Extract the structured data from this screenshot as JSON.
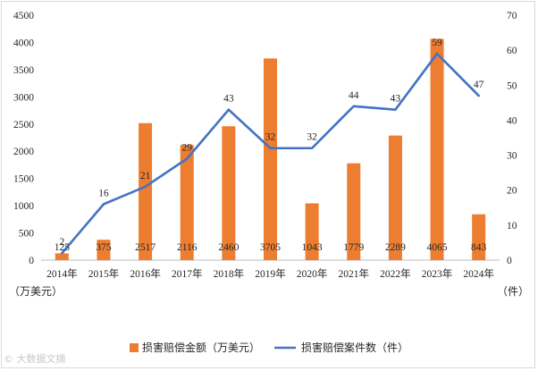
{
  "chart_data": {
    "type": "bar+line",
    "categories": [
      "2014年",
      "2015年",
      "2016年",
      "2017年",
      "2018年",
      "2019年",
      "2020年",
      "2021年",
      "2022年",
      "2023年",
      "2024年"
    ],
    "series": [
      {
        "name": "损害赔偿金额（万美元）",
        "type": "bar",
        "axis": "left",
        "color": "#ed7d31",
        "values": [
          125,
          375,
          2517,
          2116,
          2460,
          3705,
          1043,
          1779,
          2289,
          4065,
          843
        ]
      },
      {
        "name": "损害赔偿案件数（件）",
        "type": "line",
        "axis": "right",
        "color": "#4472c4",
        "values": [
          2,
          16,
          21,
          29,
          43,
          32,
          32,
          44,
          43,
          59,
          47
        ]
      }
    ],
    "y_left": {
      "min": 0,
      "max": 4500,
      "step": 500,
      "unit_label": "（万美元）"
    },
    "y_right": {
      "min": 0,
      "max": 70,
      "step": 10,
      "unit_label": "（件）"
    },
    "grid": false,
    "legend_position": "bottom"
  },
  "watermark": "© 大数据文摘"
}
